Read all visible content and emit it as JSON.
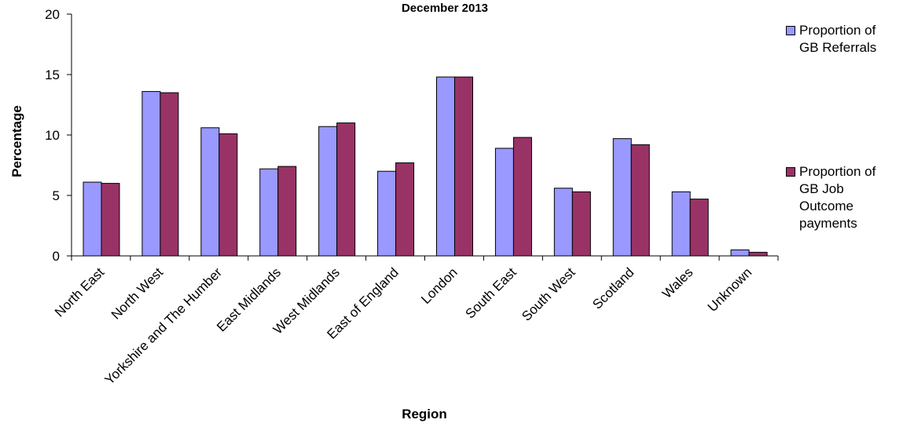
{
  "chart_data": {
    "type": "bar",
    "title": "December 2013",
    "xlabel": "Region",
    "ylabel": "Percentage",
    "ylim": [
      0,
      20
    ],
    "yticks": [
      0,
      5,
      10,
      15,
      20
    ],
    "categories": [
      "North East",
      "North West",
      "Yorkshire and The Humber",
      "East Midlands",
      "West Midlands",
      "East of England",
      "London",
      "South East",
      "South West",
      "Scotland",
      "Wales",
      "Unknown"
    ],
    "series": [
      {
        "name": "Proportion of\nGB Referrals",
        "color": "#9999ff",
        "values": [
          6.1,
          13.6,
          10.6,
          7.2,
          10.7,
          7.0,
          14.8,
          8.9,
          5.6,
          9.7,
          5.3,
          0.5
        ]
      },
      {
        "name": "Proportion of\nGB Job\nOutcome\npayments",
        "color": "#993366",
        "values": [
          6.0,
          13.5,
          10.1,
          7.4,
          11.0,
          7.7,
          14.8,
          9.8,
          5.3,
          9.2,
          4.7,
          0.3
        ]
      }
    ],
    "grid": false,
    "legend_position": "right"
  }
}
